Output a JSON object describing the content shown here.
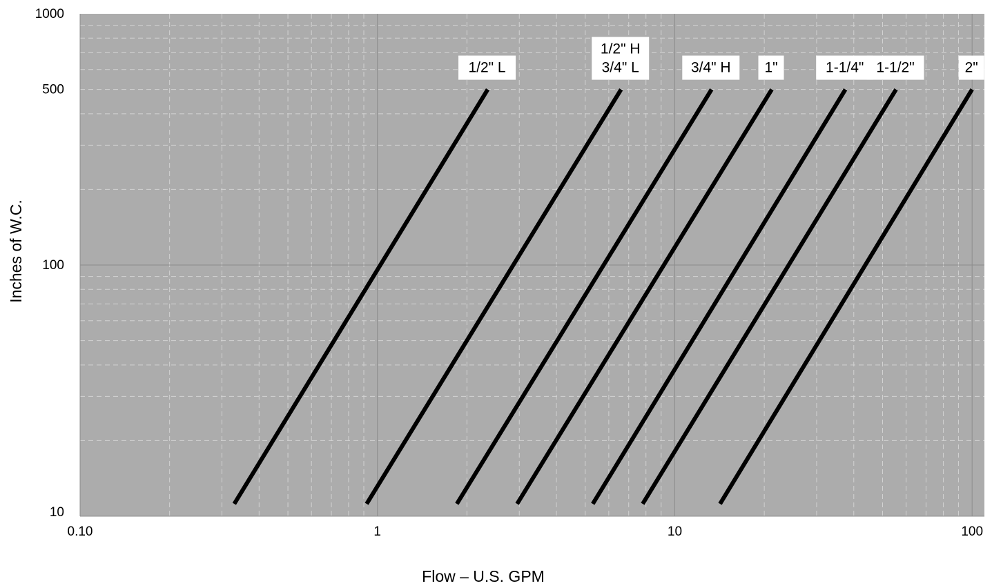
{
  "chart_data": {
    "type": "line",
    "title": "",
    "xlabel": "Flow – U.S. GPM",
    "ylabel": "Inches of W.C.",
    "x_scale": "log",
    "y_scale": "log",
    "xlim": [
      0.1,
      110
    ],
    "ylim": [
      10,
      1000
    ],
    "x_tick_labels": [
      {
        "value": 0.1,
        "label": "0.10"
      },
      {
        "value": 1,
        "label": "1"
      },
      {
        "value": 10,
        "label": "10"
      },
      {
        "value": 100,
        "label": "100"
      }
    ],
    "y_tick_labels": [
      {
        "value": 10,
        "label": "10"
      },
      {
        "value": 100,
        "label": "100"
      },
      {
        "value": 500,
        "label": "500"
      },
      {
        "value": 1000,
        "label": "1000"
      }
    ],
    "grid": true,
    "legend": "none",
    "colors": {
      "plot_background": "#acacac",
      "grid_major": "#8c8c8c",
      "grid_minor": "#d2d2d2",
      "line": "#000000",
      "label_box": "#ffffff"
    },
    "series": [
      {
        "name": "1/2\" L",
        "label_lines": [
          "1/2\" L"
        ],
        "x": [
          0.33,
          2.35
        ],
        "y": [
          11.2,
          500
        ]
      },
      {
        "name": "1/2\" H 3/4\" L",
        "label_lines": [
          "1/2\" H",
          "3/4\" L"
        ],
        "x": [
          0.92,
          6.6
        ],
        "y": [
          11.2,
          500
        ]
      },
      {
        "name": "3/4\" H",
        "label_lines": [
          "3/4\" H"
        ],
        "x": [
          1.85,
          13.3
        ],
        "y": [
          11.2,
          500
        ]
      },
      {
        "name": "1\"",
        "label_lines": [
          "1\""
        ],
        "x": [
          2.95,
          21.2
        ],
        "y": [
          11.2,
          500
        ]
      },
      {
        "name": "1-1/4\"",
        "label_lines": [
          "1-1/4\""
        ],
        "x": [
          5.3,
          37.5
        ],
        "y": [
          11.2,
          500
        ]
      },
      {
        "name": "1-1/2\"",
        "label_lines": [
          "1-1/2\""
        ],
        "x": [
          7.8,
          55.5
        ],
        "y": [
          11.2,
          500
        ]
      },
      {
        "name": "2\"",
        "label_lines": [
          "2\""
        ],
        "x": [
          14.2,
          100
        ],
        "y": [
          11.2,
          500
        ]
      }
    ]
  }
}
